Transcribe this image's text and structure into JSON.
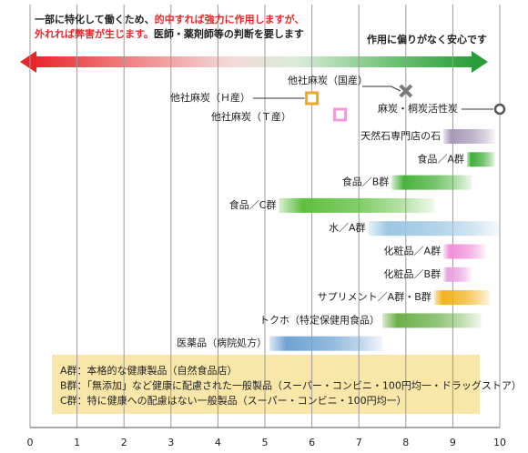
{
  "chart_data": {
    "type": "range",
    "note_lines": [
      [
        {
          "text": "一部に特化して働くため、",
          "color": "#222222"
        },
        {
          "text": "的中すれば強力に作用しますが、",
          "color": "#e8262a"
        }
      ],
      [
        {
          "text": "外れれば弊害が生じます。",
          "color": "#e8262a"
        },
        {
          "text": "医師・薬剤師等の判断を要します",
          "color": "#222222"
        }
      ]
    ],
    "safe_note": {
      "text": "作用に偏りがなく安心です",
      "color": "#2a9d3a"
    },
    "categories": [
      "天然石専門店の石",
      "食品／A群",
      "食品／B群",
      "食品／C群",
      "水／A群",
      "化粧品／A群",
      "化粧品／B群",
      "サプリメント／A群・B群",
      "トクホ（特定保健用食品）",
      "医薬品（病院処方）"
    ],
    "starts": [
      8.8,
      9.3,
      7.7,
      5.3,
      7.2,
      8.8,
      8.8,
      8.6,
      7.5,
      5.1
    ],
    "ends": [
      9.9,
      9.9,
      9.4,
      8.6,
      10,
      9.7,
      9.4,
      9.8,
      9.6,
      7.5
    ],
    "colors": [
      "#a79ab8",
      "#3fae3a",
      "#49b33c",
      "#5fbf3f",
      "#9cc6e4",
      "#ef8fd8",
      "#e8a0e0",
      "#f2b21c",
      "#6cb04a",
      "#6fa3d3"
    ],
    "points": [
      {
        "label": "他社麻炭（国産）",
        "x": 8,
        "color": "#7a7a7a",
        "marker": "x"
      },
      {
        "label": "他社麻炭（Ｈ産）",
        "x": 6,
        "color": "#f2a81d",
        "marker": "square"
      },
      {
        "label": "他社麻炭（Ｔ産）",
        "x": 6.6,
        "color": "#f49ad8",
        "marker": "square"
      },
      {
        "label": "麻炭・桐炭活性炭",
        "x": 10,
        "color": "#555555",
        "marker": "circle"
      }
    ],
    "legend_notes": [
      "A群：本格的な健康製品（自然食品店）",
      "B群：「無添加」など健康に配慮された一般製品（スーパー・コンビニ・100円均一・ドラッグストア）",
      "C群：特に健康への配慮はない一般製品（スーパー・コンビニ・100円均一）"
    ],
    "xlim": [
      0,
      10
    ],
    "xticks": [
      0,
      1,
      2,
      3,
      4,
      5,
      6,
      7,
      8,
      9,
      10
    ],
    "grid": true
  }
}
